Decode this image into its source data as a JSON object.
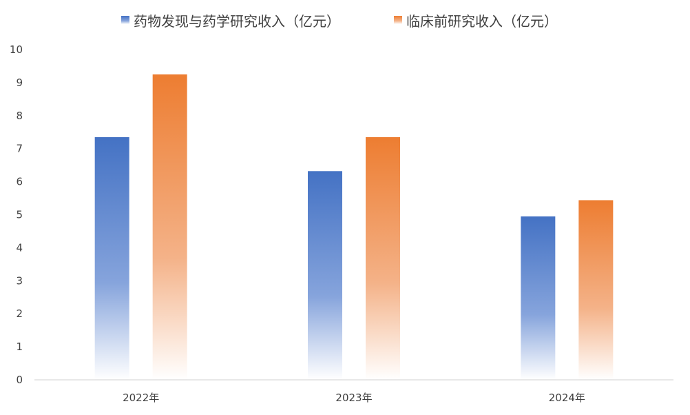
{
  "chart_data": {
    "type": "bar",
    "categories": [
      "2022年",
      "2023年",
      "2024年"
    ],
    "series": [
      {
        "name": "药物发现与药学研究收入（亿元）",
        "values": [
          7.35,
          6.32,
          4.95
        ],
        "color": "#4472C4"
      },
      {
        "name": "临床前研究收入（亿元）",
        "values": [
          9.25,
          7.35,
          5.44
        ],
        "color": "#ED7D31"
      }
    ],
    "yticks": [
      "0",
      "1",
      "2",
      "3",
      "4",
      "5",
      "6",
      "7",
      "8",
      "9",
      "10"
    ],
    "ylim": [
      0,
      10
    ],
    "grid": false,
    "legend": "top-center"
  }
}
